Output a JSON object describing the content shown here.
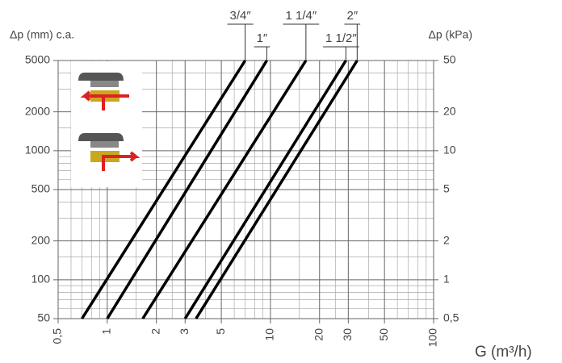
{
  "chart_data": {
    "type": "line",
    "y_label": "Δp (mm) c.a.",
    "y2_label": "Δp (kPa)",
    "x_label": "G (m³/h)",
    "log_x": true,
    "log_y": true,
    "grid": true,
    "xlim": [
      0.5,
      100
    ],
    "xticks": [
      {
        "value": 0.5,
        "label": "0,5"
      },
      1,
      2,
      3,
      5,
      10,
      20,
      30,
      50,
      100
    ],
    "xminor": [
      0.6,
      0.7,
      0.8,
      0.9,
      1.5,
      2.5,
      4,
      6,
      7,
      8,
      9,
      15,
      25,
      40,
      60,
      70,
      80,
      90
    ],
    "ylim": [
      50,
      5000
    ],
    "yticks": [
      50,
      100,
      200,
      500,
      1000,
      2000,
      5000
    ],
    "yminor": [
      60,
      70,
      80,
      90,
      150,
      300,
      400,
      600,
      700,
      800,
      900,
      1500,
      3000,
      4000
    ],
    "y2lim": [
      0.5,
      50
    ],
    "y2ticks": [
      {
        "value": 0.5,
        "label": "0,5"
      },
      1,
      2,
      5,
      10,
      20,
      50
    ],
    "series": [
      {
        "name": "3/4″",
        "color": "#000000",
        "x": [
          0.7,
          7
        ],
        "values": [
          50,
          5000
        ]
      },
      {
        "name": "1″",
        "color": "#000000",
        "x": [
          1.0,
          9.5
        ],
        "values": [
          50,
          5000
        ]
      },
      {
        "name": "1 1/4″",
        "color": "#000000",
        "x": [
          1.65,
          16.5
        ],
        "values": [
          50,
          5000
        ]
      },
      {
        "name": "1 1/2″",
        "color": "#000000",
        "x": [
          3,
          29
        ],
        "values": [
          50,
          5000
        ]
      },
      {
        "name": "2″",
        "color": "#000000",
        "x": [
          3.5,
          34
        ],
        "values": [
          50,
          5000
        ]
      }
    ]
  }
}
